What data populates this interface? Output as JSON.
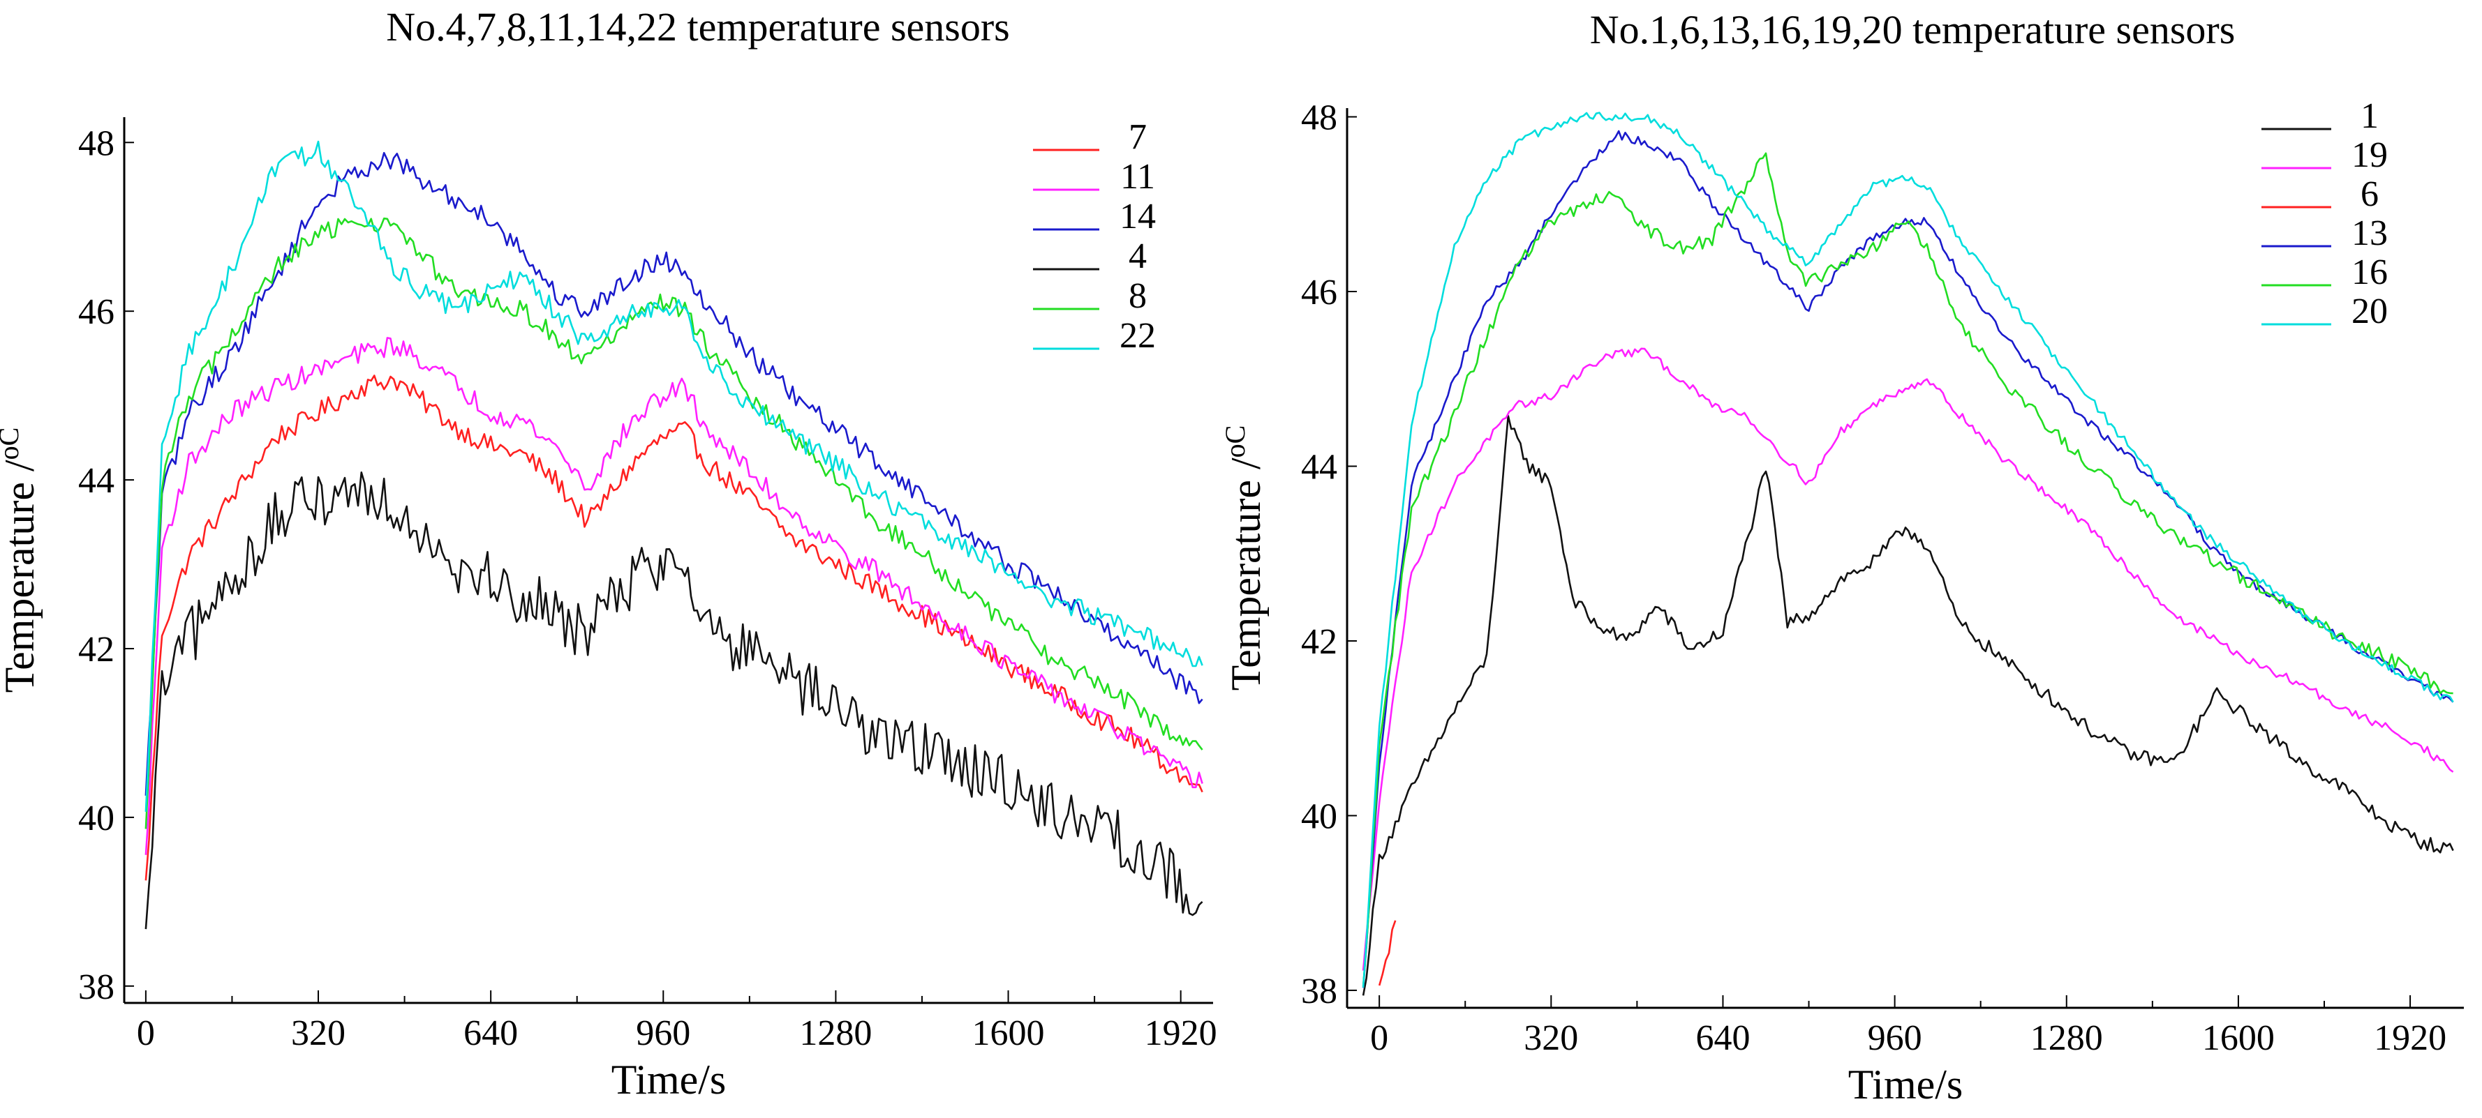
{
  "chart_data": [
    {
      "type": "line",
      "title": "No.4,7,8,11,14,22   temperature   sensors",
      "xlabel": "Time/s",
      "ylabel": "Temperature /",
      "ylabel_unit": "oC",
      "xlim": [
        -40,
        1980
      ],
      "ylim": [
        37.8,
        48.3
      ],
      "xticks": [
        0,
        320,
        640,
        960,
        1280,
        1600,
        1920
      ],
      "yticks": [
        38,
        40,
        42,
        44,
        46,
        48
      ],
      "grid": false,
      "legend_position": "top-right",
      "series": [
        {
          "name": "7",
          "color": "#ff2020",
          "x": [
            0,
            30,
            80,
            160,
            240,
            320,
            400,
            460,
            520,
            580,
            640,
            700,
            760,
            820,
            880,
            920,
            960,
            1000,
            1040,
            1120,
            1200,
            1280,
            1360,
            1440,
            1520,
            1600,
            1680,
            1760,
            1840,
            1900,
            1960
          ],
          "y": [
            39.2,
            42.2,
            43.1,
            43.8,
            44.5,
            44.8,
            45.1,
            45.2,
            44.9,
            44.6,
            44.4,
            44.3,
            44.0,
            43.5,
            44.0,
            44.3,
            44.5,
            44.6,
            44.2,
            43.8,
            43.3,
            43.0,
            42.7,
            42.4,
            42.1,
            41.8,
            41.5,
            41.2,
            40.9,
            40.6,
            40.3
          ]
        },
        {
          "name": "11",
          "color": "#ff20ff",
          "x": [
            0,
            30,
            80,
            160,
            240,
            320,
            400,
            460,
            520,
            580,
            640,
            700,
            760,
            820,
            880,
            920,
            960,
            1000,
            1040,
            1120,
            1200,
            1280,
            1360,
            1440,
            1520,
            1600,
            1680,
            1760,
            1840,
            1900,
            1960
          ],
          "y": [
            39.5,
            43.2,
            44.2,
            44.8,
            45.1,
            45.3,
            45.5,
            45.6,
            45.4,
            45.1,
            44.8,
            44.7,
            44.4,
            43.9,
            44.5,
            44.8,
            45.0,
            45.1,
            44.6,
            44.1,
            43.6,
            43.2,
            42.9,
            42.5,
            42.2,
            41.8,
            41.5,
            41.2,
            40.9,
            40.6,
            40.4
          ]
        },
        {
          "name": "14",
          "color": "#1a1acc",
          "x": [
            0,
            30,
            80,
            160,
            240,
            320,
            400,
            460,
            520,
            580,
            640,
            700,
            760,
            820,
            880,
            920,
            960,
            1000,
            1040,
            1120,
            1200,
            1280,
            1360,
            1440,
            1520,
            1600,
            1680,
            1760,
            1840,
            1900,
            1960
          ],
          "y": [
            40.2,
            43.8,
            44.8,
            45.5,
            46.4,
            47.3,
            47.7,
            47.8,
            47.5,
            47.3,
            47.1,
            46.7,
            46.2,
            46.0,
            46.3,
            46.5,
            46.6,
            46.5,
            46.1,
            45.5,
            45.0,
            44.6,
            44.2,
            43.8,
            43.4,
            43.0,
            42.7,
            42.3,
            42.0,
            41.7,
            41.4
          ]
        },
        {
          "name": "4",
          "color": "#111111",
          "x": [
            0,
            30,
            80,
            160,
            240,
            320,
            400,
            460,
            520,
            580,
            640,
            700,
            760,
            820,
            880,
            920,
            960,
            1000,
            1040,
            1120,
            1200,
            1280,
            1360,
            1440,
            1520,
            1600,
            1680,
            1760,
            1840,
            1900,
            1960
          ],
          "y": [
            38.5,
            41.5,
            42.1,
            42.8,
            43.5,
            43.8,
            43.9,
            43.7,
            43.4,
            43.0,
            42.8,
            42.6,
            42.4,
            42.2,
            42.7,
            42.9,
            43.0,
            43.1,
            42.3,
            41.9,
            41.6,
            41.3,
            41.0,
            40.8,
            40.6,
            40.4,
            40.1,
            39.9,
            39.6,
            39.3,
            39.0
          ]
        },
        {
          "name": "8",
          "color": "#22dd22",
          "x": [
            0,
            30,
            80,
            160,
            240,
            320,
            400,
            460,
            520,
            580,
            640,
            700,
            760,
            820,
            880,
            920,
            960,
            1000,
            1040,
            1120,
            1200,
            1280,
            1360,
            1440,
            1520,
            1600,
            1680,
            1760,
            1840,
            1900,
            1960
          ],
          "y": [
            39.8,
            44.0,
            45.0,
            45.7,
            46.5,
            46.9,
            47.1,
            47.0,
            46.6,
            46.2,
            46.1,
            46.0,
            45.7,
            45.4,
            45.8,
            46.0,
            46.1,
            46.0,
            45.6,
            45.0,
            44.5,
            44.0,
            43.5,
            43.1,
            42.7,
            42.3,
            41.9,
            41.6,
            41.3,
            41.0,
            40.8
          ]
        },
        {
          "name": "22",
          "color": "#00dddd",
          "x": [
            0,
            30,
            80,
            160,
            240,
            320,
            400,
            460,
            520,
            580,
            640,
            700,
            760,
            820,
            880,
            920,
            960,
            1000,
            1040,
            1120,
            1200,
            1280,
            1360,
            1440,
            1520,
            1600,
            1680,
            1760,
            1840,
            1900,
            1960
          ],
          "y": [
            40.0,
            44.5,
            45.5,
            46.5,
            47.7,
            47.9,
            47.2,
            46.5,
            46.2,
            46.0,
            46.3,
            46.4,
            46.0,
            45.6,
            45.9,
            46.0,
            46.1,
            46.0,
            45.4,
            44.9,
            44.5,
            44.2,
            43.8,
            43.5,
            43.2,
            42.9,
            42.6,
            42.4,
            42.2,
            42.0,
            41.8
          ]
        }
      ]
    },
    {
      "type": "line",
      "title": "No.1,6,13,16,19,20  temperature  sensors",
      "xlabel": "Time/s",
      "ylabel": "Temperature /",
      "ylabel_unit": "oC",
      "xlim": [
        -60,
        2020
      ],
      "ylim": [
        37.8,
        48.1
      ],
      "xticks": [
        0,
        320,
        640,
        960,
        1280,
        1600,
        1920
      ],
      "yticks": [
        38,
        40,
        42,
        44,
        46,
        48
      ],
      "grid": false,
      "legend_position": "top-right",
      "series": [
        {
          "name": "1",
          "color": "#111111",
          "x": [
            -30,
            0,
            60,
            140,
            200,
            240,
            280,
            320,
            360,
            400,
            460,
            520,
            580,
            640,
            700,
            720,
            760,
            800,
            860,
            920,
            980,
            1020,
            1080,
            1160,
            1240,
            1320,
            1400,
            1480,
            1560,
            1640,
            1720,
            1800,
            1880,
            1940,
            2000
          ],
          "y": [
            37.9,
            39.5,
            40.3,
            41.2,
            41.8,
            44.5,
            44.0,
            43.8,
            42.5,
            42.2,
            42.0,
            42.4,
            41.9,
            42.1,
            43.5,
            44.0,
            42.2,
            42.3,
            42.7,
            42.9,
            43.3,
            43.1,
            42.2,
            41.8,
            41.4,
            41.0,
            40.7,
            40.6,
            41.4,
            41.0,
            40.6,
            40.3,
            39.9,
            39.7,
            39.6
          ]
        },
        {
          "name": "19",
          "color": "#ff20ff",
          "x": [
            -30,
            0,
            60,
            140,
            200,
            260,
            320,
            380,
            440,
            500,
            560,
            620,
            680,
            740,
            800,
            860,
            920,
            980,
            1020,
            1080,
            1160,
            1240,
            1320,
            1400,
            1480,
            1560,
            1640,
            1720,
            1800,
            1880,
            1940,
            2000
          ],
          "y": [
            38.2,
            40.2,
            42.8,
            43.8,
            44.3,
            44.7,
            44.8,
            45.1,
            45.3,
            45.3,
            45.0,
            44.7,
            44.6,
            44.2,
            43.8,
            44.4,
            44.7,
            44.9,
            45.0,
            44.6,
            44.1,
            43.7,
            43.3,
            42.8,
            42.3,
            42.0,
            41.7,
            41.5,
            41.2,
            41.0,
            40.8,
            40.5
          ]
        },
        {
          "name": "6",
          "color": "#ff2020",
          "x": [
            0,
            30
          ],
          "y": [
            38.0,
            38.8
          ]
        },
        {
          "name": "13",
          "color": "#1a1acc",
          "x": [
            -30,
            0,
            60,
            140,
            200,
            260,
            320,
            380,
            440,
            500,
            560,
            620,
            680,
            740,
            800,
            860,
            920,
            980,
            1020,
            1080,
            1160,
            1240,
            1320,
            1400,
            1480,
            1560,
            1640,
            1720,
            1800,
            1880,
            1940,
            2000
          ],
          "y": [
            38.0,
            40.6,
            43.8,
            45.0,
            45.9,
            46.3,
            46.9,
            47.4,
            47.8,
            47.7,
            47.5,
            47.0,
            46.6,
            46.2,
            45.8,
            46.3,
            46.6,
            46.8,
            46.8,
            46.2,
            45.5,
            45.0,
            44.5,
            44.1,
            43.6,
            43.0,
            42.6,
            42.3,
            42.0,
            41.7,
            41.5,
            41.3
          ]
        },
        {
          "name": "16",
          "color": "#22dd22",
          "x": [
            -30,
            0,
            60,
            140,
            200,
            260,
            320,
            380,
            440,
            500,
            560,
            620,
            680,
            720,
            760,
            800,
            860,
            920,
            980,
            1020,
            1080,
            1160,
            1240,
            1320,
            1400,
            1480,
            1560,
            1640,
            1720,
            1800,
            1880,
            1940,
            2000
          ],
          "y": [
            38.0,
            40.8,
            43.5,
            44.6,
            45.5,
            46.3,
            46.8,
            47.0,
            47.1,
            46.7,
            46.5,
            46.6,
            47.2,
            47.6,
            46.4,
            46.1,
            46.3,
            46.5,
            46.8,
            46.5,
            45.6,
            45.0,
            44.5,
            44.0,
            43.6,
            43.2,
            42.9,
            42.6,
            42.3,
            42.0,
            41.8,
            41.6,
            41.4
          ]
        },
        {
          "name": "20",
          "color": "#00dddd",
          "x": [
            -30,
            0,
            60,
            140,
            200,
            260,
            320,
            380,
            440,
            500,
            560,
            620,
            680,
            740,
            800,
            860,
            920,
            980,
            1020,
            1080,
            1160,
            1240,
            1320,
            1400,
            1480,
            1560,
            1640,
            1720,
            1800,
            1880,
            1940,
            2000
          ],
          "y": [
            38.0,
            41.0,
            44.5,
            46.5,
            47.3,
            47.7,
            47.9,
            48.0,
            48.0,
            48.0,
            47.8,
            47.4,
            47.0,
            46.6,
            46.3,
            46.8,
            47.2,
            47.3,
            47.2,
            46.6,
            46.0,
            45.4,
            44.8,
            44.2,
            43.6,
            43.1,
            42.7,
            42.3,
            42.0,
            41.7,
            41.5,
            41.3
          ]
        }
      ]
    }
  ]
}
